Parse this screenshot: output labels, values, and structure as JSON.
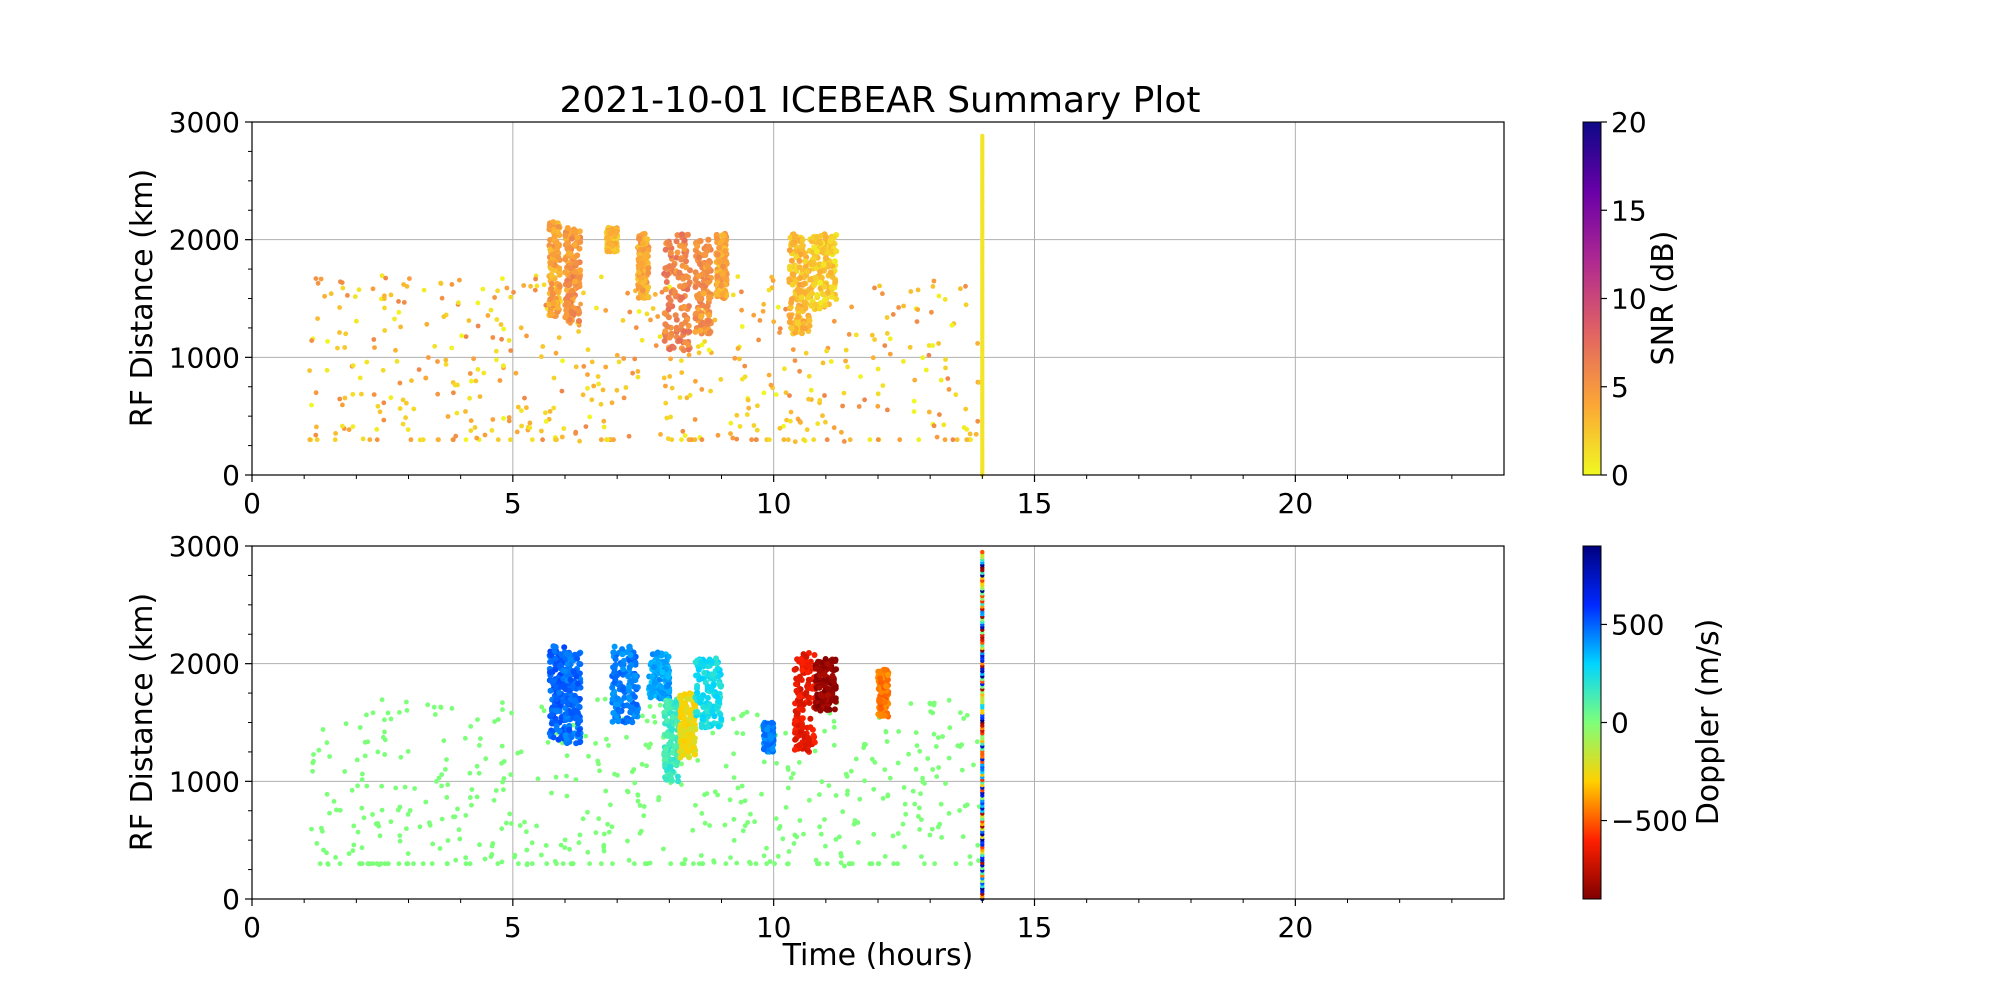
{
  "chart_data": {
    "title": "2021-10-01 ICEBEAR Summary Plot",
    "panels": [
      {
        "type": "scatter",
        "ylabel": "RF Distance (km)",
        "xlabel": "",
        "xlim": [
          0,
          24
        ],
        "ylim": [
          0,
          3000
        ],
        "xticks": [
          0,
          5,
          10,
          15,
          20
        ],
        "yticks": [
          0,
          1000,
          2000,
          3000
        ],
        "grid": true,
        "colorbar": {
          "label": "SNR (dB)",
          "range": [
            0,
            20
          ],
          "ticks": [
            0,
            5,
            10,
            15,
            20
          ],
          "colormap": "plasma_r",
          "colors": [
            "#f0f921",
            "#fca636",
            "#e16462",
            "#b12a90",
            "#6a00a8",
            "#0d0887"
          ]
        },
        "color_value": "snr",
        "clusters": [
          {
            "t": [
              5.7,
              5.9
            ],
            "d": [
              1350,
              2150
            ],
            "value": 4
          },
          {
            "t": [
              6.0,
              6.3
            ],
            "d": [
              1300,
              2100
            ],
            "value": 5
          },
          {
            "t": [
              6.8,
              7.0
            ],
            "d": [
              1900,
              2100
            ],
            "value": 3
          },
          {
            "t": [
              7.4,
              7.6
            ],
            "d": [
              1500,
              2050
            ],
            "value": 4
          },
          {
            "t": [
              7.9,
              8.4
            ],
            "d": [
              1050,
              2050
            ],
            "value": 6
          },
          {
            "t": [
              8.5,
              8.8
            ],
            "d": [
              1200,
              2000
            ],
            "value": 5
          },
          {
            "t": [
              8.9,
              9.1
            ],
            "d": [
              1500,
              2050
            ],
            "value": 4
          },
          {
            "t": [
              10.3,
              10.7
            ],
            "d": [
              1200,
              2050
            ],
            "value": 3
          },
          {
            "t": [
              10.7,
              11.2
            ],
            "d": [
              1400,
              2050
            ],
            "value": 2
          }
        ],
        "vertical_streak": {
          "t": 14.0,
          "d": [
            0,
            2900
          ],
          "value": 1
        },
        "background_points": {
          "t": [
            1.1,
            14.0
          ],
          "d": [
            280,
            1700
          ],
          "value_range": [
            0,
            6
          ]
        }
      },
      {
        "type": "scatter",
        "ylabel": "RF Distance (km)",
        "xlabel": "Time (hours)",
        "xlim": [
          0,
          24
        ],
        "ylim": [
          0,
          3000
        ],
        "xticks": [
          0,
          5,
          10,
          15,
          20
        ],
        "yticks": [
          0,
          1000,
          2000,
          3000
        ],
        "grid": true,
        "colorbar": {
          "label": "Doppler (m/s)",
          "range": [
            -900,
            900
          ],
          "ticks": [
            -500,
            0,
            500
          ],
          "tick_labels": [
            "−500",
            "0",
            "500"
          ],
          "colormap": "jet_r",
          "colors": [
            "#800000",
            "#ff2000",
            "#ffd000",
            "#7fff7a",
            "#00d4ff",
            "#0028ff",
            "#000080"
          ]
        },
        "color_value": "doppler",
        "clusters": [
          {
            "t": [
              5.7,
              6.0
            ],
            "d": [
              1350,
              2150
            ],
            "value": 500
          },
          {
            "t": [
              6.0,
              6.3
            ],
            "d": [
              1300,
              2100
            ],
            "value": 480
          },
          {
            "t": [
              6.9,
              7.4
            ],
            "d": [
              1500,
              2150
            ],
            "value": 450
          },
          {
            "t": [
              7.6,
              8.0
            ],
            "d": [
              1700,
              2100
            ],
            "value": 380
          },
          {
            "t": [
              7.9,
              8.2
            ],
            "d": [
              1000,
              1700
            ],
            "value": 150
          },
          {
            "t": [
              8.2,
              8.5
            ],
            "d": [
              1200,
              1750
            ],
            "value": -250
          },
          {
            "t": [
              8.5,
              9.0
            ],
            "d": [
              1450,
              2050
            ],
            "value": 250
          },
          {
            "t": [
              9.8,
              10.0
            ],
            "d": [
              1250,
              1500
            ],
            "value": 450
          },
          {
            "t": [
              10.4,
              10.8
            ],
            "d": [
              1250,
              2100
            ],
            "value": -650
          },
          {
            "t": [
              10.8,
              11.2
            ],
            "d": [
              1600,
              2050
            ],
            "value": -850
          },
          {
            "t": [
              12.0,
              12.2
            ],
            "d": [
              1550,
              1950
            ],
            "value": -450
          }
        ],
        "vertical_streak": {
          "t": 14.0,
          "d": [
            0,
            2950
          ],
          "value_range": [
            -900,
            900
          ]
        },
        "background_points": {
          "t": [
            1.1,
            14.0
          ],
          "d": [
            280,
            1700
          ],
          "value": 0
        }
      }
    ]
  }
}
